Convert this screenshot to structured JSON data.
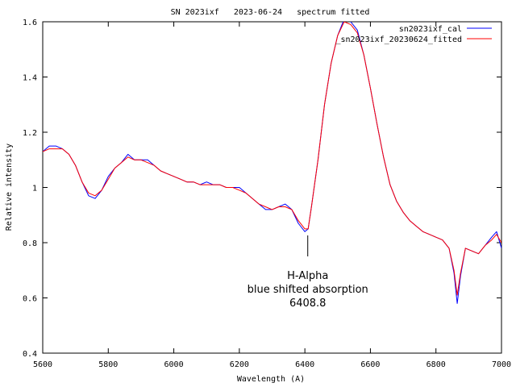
{
  "chart_data": {
    "type": "line",
    "title": "SN 2023ixf   2023-06-24   spectrum fitted",
    "xlabel": "Wavelength (A)",
    "ylabel": "Relative intensity",
    "xlim": [
      5600,
      7000
    ],
    "ylim": [
      0.4,
      1.6
    ],
    "x_ticks": [
      5600,
      5800,
      6000,
      6200,
      6400,
      6600,
      6800,
      7000
    ],
    "y_ticks": [
      0.4,
      0.6,
      0.8,
      1,
      1.2,
      1.4,
      1.6
    ],
    "x_tick_labels": [
      "5600",
      "5800",
      "6000",
      "6200",
      "6400",
      "6600",
      "6800",
      "7000"
    ],
    "y_tick_labels": [
      "0.4",
      "0.6",
      "0.8",
      "1",
      "1.2",
      "1.4",
      "1.6"
    ],
    "grid": false,
    "legend_position": "top-right",
    "series": [
      {
        "name": "sn2023ixf_cal",
        "color": "#0000ff",
        "points": [
          [
            5600,
            1.13
          ],
          [
            5620,
            1.15
          ],
          [
            5640,
            1.15
          ],
          [
            5660,
            1.14
          ],
          [
            5680,
            1.12
          ],
          [
            5700,
            1.08
          ],
          [
            5720,
            1.02
          ],
          [
            5740,
            0.97
          ],
          [
            5760,
            0.96
          ],
          [
            5780,
            0.99
          ],
          [
            5800,
            1.04
          ],
          [
            5820,
            1.07
          ],
          [
            5840,
            1.09
          ],
          [
            5860,
            1.12
          ],
          [
            5880,
            1.1
          ],
          [
            5900,
            1.1
          ],
          [
            5920,
            1.1
          ],
          [
            5940,
            1.08
          ],
          [
            5960,
            1.06
          ],
          [
            5980,
            1.05
          ],
          [
            6000,
            1.04
          ],
          [
            6020,
            1.03
          ],
          [
            6040,
            1.02
          ],
          [
            6060,
            1.02
          ],
          [
            6080,
            1.01
          ],
          [
            6100,
            1.02
          ],
          [
            6120,
            1.01
          ],
          [
            6140,
            1.01
          ],
          [
            6160,
            1.0
          ],
          [
            6180,
            1.0
          ],
          [
            6200,
            1.0
          ],
          [
            6220,
            0.98
          ],
          [
            6240,
            0.96
          ],
          [
            6260,
            0.94
          ],
          [
            6280,
            0.92
          ],
          [
            6300,
            0.92
          ],
          [
            6320,
            0.93
          ],
          [
            6340,
            0.94
          ],
          [
            6360,
            0.92
          ],
          [
            6380,
            0.87
          ],
          [
            6400,
            0.84
          ],
          [
            6410,
            0.85
          ],
          [
            6420,
            0.93
          ],
          [
            6440,
            1.1
          ],
          [
            6460,
            1.3
          ],
          [
            6480,
            1.45
          ],
          [
            6500,
            1.55
          ],
          [
            6520,
            1.61
          ],
          [
            6540,
            1.6
          ],
          [
            6560,
            1.57
          ],
          [
            6580,
            1.48
          ],
          [
            6600,
            1.36
          ],
          [
            6620,
            1.23
          ],
          [
            6640,
            1.11
          ],
          [
            6660,
            1.01
          ],
          [
            6680,
            0.95
          ],
          [
            6700,
            0.91
          ],
          [
            6720,
            0.88
          ],
          [
            6740,
            0.86
          ],
          [
            6760,
            0.84
          ],
          [
            6780,
            0.83
          ],
          [
            6800,
            0.82
          ],
          [
            6820,
            0.81
          ],
          [
            6840,
            0.78
          ],
          [
            6855,
            0.69
          ],
          [
            6865,
            0.58
          ],
          [
            6875,
            0.68
          ],
          [
            6890,
            0.78
          ],
          [
            6910,
            0.77
          ],
          [
            6930,
            0.76
          ],
          [
            6950,
            0.79
          ],
          [
            6970,
            0.82
          ],
          [
            6985,
            0.84
          ],
          [
            7000,
            0.78
          ]
        ]
      },
      {
        "name": "_sn2023ixf_20230624_fitted",
        "color": "#ff0000",
        "points": [
          [
            5600,
            1.13
          ],
          [
            5620,
            1.14
          ],
          [
            5640,
            1.14
          ],
          [
            5660,
            1.14
          ],
          [
            5680,
            1.12
          ],
          [
            5700,
            1.08
          ],
          [
            5720,
            1.02
          ],
          [
            5740,
            0.98
          ],
          [
            5760,
            0.97
          ],
          [
            5780,
            0.99
          ],
          [
            5800,
            1.03
          ],
          [
            5820,
            1.07
          ],
          [
            5840,
            1.09
          ],
          [
            5860,
            1.11
          ],
          [
            5880,
            1.1
          ],
          [
            5900,
            1.1
          ],
          [
            5920,
            1.09
          ],
          [
            5940,
            1.08
          ],
          [
            5960,
            1.06
          ],
          [
            5980,
            1.05
          ],
          [
            6000,
            1.04
          ],
          [
            6020,
            1.03
          ],
          [
            6040,
            1.02
          ],
          [
            6060,
            1.02
          ],
          [
            6080,
            1.01
          ],
          [
            6100,
            1.01
          ],
          [
            6120,
            1.01
          ],
          [
            6140,
            1.01
          ],
          [
            6160,
            1.0
          ],
          [
            6180,
            1.0
          ],
          [
            6200,
            0.99
          ],
          [
            6220,
            0.98
          ],
          [
            6240,
            0.96
          ],
          [
            6260,
            0.94
          ],
          [
            6280,
            0.93
          ],
          [
            6300,
            0.92
          ],
          [
            6320,
            0.93
          ],
          [
            6340,
            0.93
          ],
          [
            6360,
            0.92
          ],
          [
            6380,
            0.88
          ],
          [
            6400,
            0.85
          ],
          [
            6410,
            0.85
          ],
          [
            6420,
            0.93
          ],
          [
            6440,
            1.1
          ],
          [
            6460,
            1.3
          ],
          [
            6480,
            1.45
          ],
          [
            6500,
            1.55
          ],
          [
            6520,
            1.6
          ],
          [
            6540,
            1.59
          ],
          [
            6560,
            1.56
          ],
          [
            6580,
            1.48
          ],
          [
            6600,
            1.36
          ],
          [
            6620,
            1.23
          ],
          [
            6640,
            1.11
          ],
          [
            6660,
            1.01
          ],
          [
            6680,
            0.95
          ],
          [
            6700,
            0.91
          ],
          [
            6720,
            0.88
          ],
          [
            6740,
            0.86
          ],
          [
            6760,
            0.84
          ],
          [
            6780,
            0.83
          ],
          [
            6800,
            0.82
          ],
          [
            6820,
            0.81
          ],
          [
            6840,
            0.78
          ],
          [
            6855,
            0.7
          ],
          [
            6865,
            0.61
          ],
          [
            6875,
            0.69
          ],
          [
            6890,
            0.78
          ],
          [
            6910,
            0.77
          ],
          [
            6930,
            0.76
          ],
          [
            6950,
            0.79
          ],
          [
            6970,
            0.81
          ],
          [
            6985,
            0.83
          ],
          [
            7000,
            0.8
          ]
        ]
      }
    ],
    "annotation": {
      "x": 6408.8,
      "y": 0.8,
      "lines": [
        "H-Alpha",
        "blue shifted absorption",
        "6408.8"
      ]
    }
  }
}
